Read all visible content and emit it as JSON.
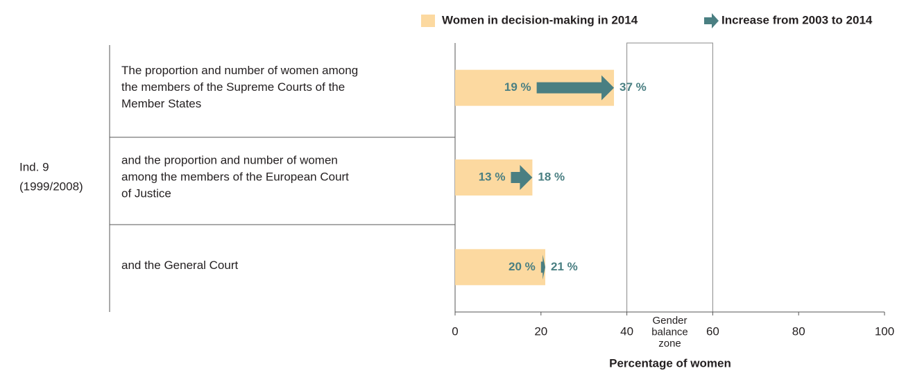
{
  "chart_data": {
    "type": "bar",
    "orientation": "horizontal",
    "group_label": [
      "Ind. 9",
      "(1999/2008)"
    ],
    "categories": [
      [
        "The proportion and number of women among",
        "the members of the Supreme Courts of the",
        "Member States"
      ],
      [
        "and the proportion and number of women",
        "among the members of the European Court",
        "of Justice"
      ],
      [
        "and the General Court"
      ]
    ],
    "series": [
      {
        "name": "Women in decision-making in 2014",
        "color": "#fcd9a0",
        "values": [
          37,
          18,
          21
        ],
        "value_labels": [
          "37 %",
          "18 %",
          "21 %"
        ]
      },
      {
        "name": "Increase from 2003 to 2014",
        "color": "#4a7f82",
        "values": [
          19,
          13,
          20
        ],
        "value_labels": [
          "19 %",
          "13 %",
          "20 %"
        ]
      }
    ],
    "zone": {
      "range": [
        40,
        60
      ],
      "label": [
        "Gender",
        "balance",
        "zone"
      ]
    },
    "xlabel": "Percentage of women",
    "xlim": [
      0,
      100
    ],
    "xticks": [
      0,
      20,
      40,
      60,
      80,
      100
    ]
  }
}
